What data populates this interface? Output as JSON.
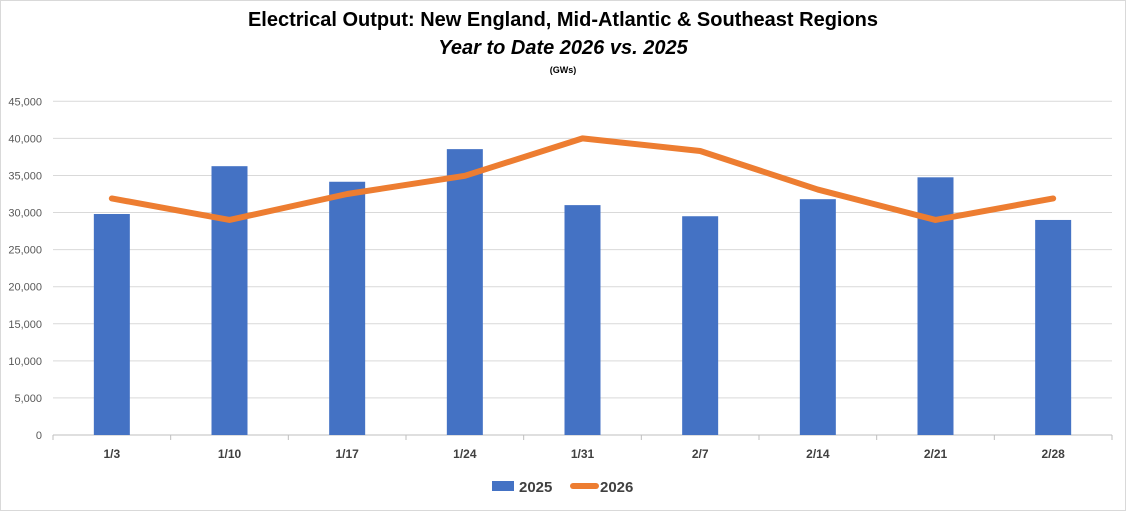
{
  "chart_data": {
    "type": "bar",
    "title": "Electrical Output:  New England, Mid-Atlantic & Southeast Regions",
    "subtitle": "Year to Date 2026 vs. 2025",
    "units": "(GWs)",
    "xlabel": "",
    "ylabel": "",
    "ylim": [
      0,
      45000
    ],
    "yticks": [
      0,
      5000,
      10000,
      15000,
      20000,
      25000,
      30000,
      35000,
      40000,
      45000
    ],
    "ytick_labels": [
      "0",
      "5,000",
      "10,000",
      "15,000",
      "20,000",
      "25,000",
      "30,000",
      "35,000",
      "40,000",
      "45,000"
    ],
    "grid": true,
    "legend_position": "bottom",
    "categories": [
      "1/3",
      "1/10",
      "1/17",
      "1/24",
      "1/31",
      "2/7",
      "2/14",
      "2/21",
      "2/28"
    ],
    "series": [
      {
        "name": "2025",
        "type": "bar",
        "color": "#4472C4",
        "values": [
          29800,
          36250,
          34150,
          38550,
          31000,
          29500,
          31800,
          34750,
          29000
        ]
      },
      {
        "name": "2026",
        "type": "line",
        "color": "#ED7D31",
        "values": [
          31900,
          29000,
          32500,
          34950,
          40000,
          38300,
          33100,
          29000,
          31900
        ]
      }
    ]
  }
}
